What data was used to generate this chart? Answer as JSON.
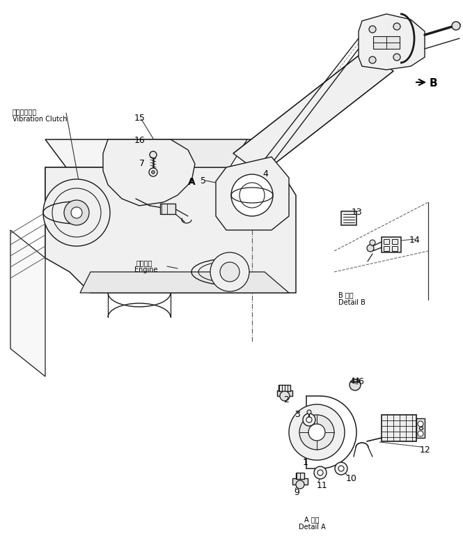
{
  "bg_color": "#ffffff",
  "line_color": "#1a1a1a",
  "labels": {
    "vibration_clutch_ja": "起振クラッチ",
    "vibration_clutch_en": "Vibration Clutch",
    "engine_ja": "エンジン",
    "engine_en": "Engine",
    "detail_a_ja": "A 詳細",
    "detail_a_en": "Detail A",
    "detail_b_ja": "B 詳細",
    "detail_b_en": "Detail B"
  },
  "figsize": [
    6.65,
    7.86
  ],
  "dpi": 100
}
